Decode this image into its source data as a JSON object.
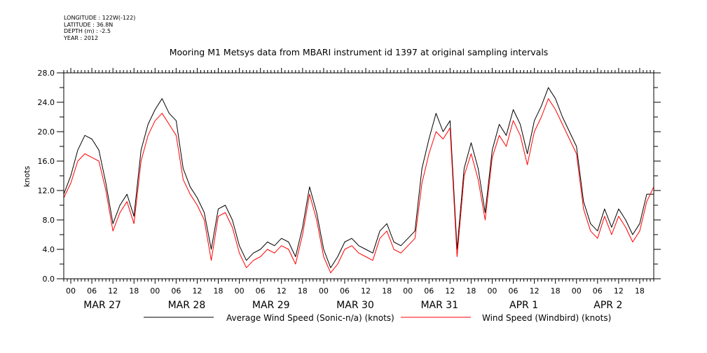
{
  "header": {
    "lines": [
      "LONGITUDE : 122W(-122)",
      "LATITUDE : 36.8N",
      "DEPTH (m) : -2.5",
      "YEAR : 2012"
    ]
  },
  "chart_data": {
    "type": "line",
    "title": "Mooring M1 Metsys data from MBARI instrument id 1397 at original sampling intervals",
    "xlabel": "",
    "ylabel": "knots",
    "ylim": [
      0,
      28
    ],
    "yticks": [
      "0.0",
      "4.0",
      "8.0",
      "12.0",
      "16.0",
      "20.0",
      "24.0",
      "28.0"
    ],
    "hour_labels": [
      "00",
      "06",
      "12",
      "18"
    ],
    "date_labels": [
      "MAR 27",
      "MAR 28",
      "MAR 29",
      "MAR 30",
      "MAR 31",
      "APR  1",
      "APR  2"
    ],
    "x_unit": "hours since 2012-03-27 00:00",
    "xlim": [
      -2,
      166
    ],
    "grid": false,
    "legend_position": "bottom",
    "series": [
      {
        "name": "Average Wind Speed (Sonic-n/a) (knots)",
        "color": "#000000",
        "x": [
          -2,
          0,
          2,
          4,
          6,
          8,
          10,
          12,
          14,
          16,
          18,
          20,
          22,
          24,
          26,
          28,
          30,
          32,
          34,
          36,
          38,
          40,
          42,
          44,
          46,
          48,
          50,
          52,
          54,
          56,
          58,
          60,
          62,
          64,
          66,
          68,
          70,
          72,
          74,
          76,
          78,
          80,
          82,
          84,
          86,
          88,
          90,
          92,
          94,
          96,
          98,
          100,
          102,
          104,
          106,
          108,
          110,
          112,
          114,
          116,
          118,
          120,
          122,
          124,
          126,
          128,
          130,
          132,
          134,
          136,
          138,
          140,
          142,
          144,
          146,
          148,
          150,
          152,
          154,
          156,
          158,
          160,
          162,
          164,
          166
        ],
        "values": [
          11.5,
          14.0,
          17.5,
          19.5,
          19.0,
          17.5,
          13.0,
          7.5,
          10.0,
          11.5,
          8.5,
          17.5,
          21.0,
          23.0,
          24.5,
          22.5,
          21.5,
          15.0,
          12.5,
          11.0,
          9.0,
          4.0,
          9.5,
          10.0,
          8.0,
          4.5,
          2.5,
          3.5,
          4.0,
          5.0,
          4.5,
          5.5,
          5.0,
          3.0,
          7.0,
          12.5,
          9.0,
          4.0,
          1.5,
          3.0,
          5.0,
          5.5,
          4.5,
          4.0,
          3.5,
          6.5,
          7.5,
          5.0,
          4.5,
          5.5,
          6.5,
          15.0,
          19.0,
          22.5,
          20.0,
          21.5,
          4.0,
          15.0,
          18.5,
          15.0,
          9.0,
          17.5,
          21.0,
          19.5,
          23.0,
          21.0,
          17.0,
          21.5,
          23.5,
          26.0,
          24.5,
          22.0,
          20.0,
          18.0,
          10.5,
          7.5,
          6.5,
          9.5,
          7.0,
          9.5,
          8.0,
          6.0,
          7.5,
          11.5,
          11.5
        ]
      },
      {
        "name": "Wind Speed (Windbird) (knots)",
        "color": "#ff0000",
        "x": [
          -2,
          0,
          2,
          4,
          6,
          8,
          10,
          12,
          14,
          16,
          18,
          20,
          22,
          24,
          26,
          28,
          30,
          32,
          34,
          36,
          38,
          40,
          42,
          44,
          46,
          48,
          50,
          52,
          54,
          56,
          58,
          60,
          62,
          64,
          66,
          68,
          70,
          72,
          74,
          76,
          78,
          80,
          82,
          84,
          86,
          88,
          90,
          92,
          94,
          96,
          98,
          100,
          102,
          104,
          106,
          108,
          110,
          112,
          114,
          116,
          118,
          120,
          122,
          124,
          126,
          128,
          130,
          132,
          134,
          136,
          138,
          140,
          142,
          144,
          146,
          148,
          150,
          152,
          154,
          156,
          158,
          160,
          162,
          164,
          166
        ],
        "values": [
          11.0,
          13.0,
          16.0,
          17.0,
          16.5,
          16.0,
          12.0,
          6.5,
          9.0,
          10.5,
          7.5,
          16.0,
          19.5,
          21.5,
          22.5,
          21.0,
          19.5,
          13.5,
          11.5,
          10.0,
          8.0,
          2.5,
          8.5,
          9.0,
          7.0,
          3.5,
          1.5,
          2.5,
          3.0,
          4.0,
          3.5,
          4.5,
          4.0,
          2.0,
          6.0,
          11.5,
          8.0,
          3.0,
          0.8,
          2.0,
          4.0,
          4.5,
          3.5,
          3.0,
          2.5,
          5.5,
          6.5,
          4.0,
          3.5,
          4.5,
          5.5,
          13.0,
          17.0,
          20.0,
          19.0,
          20.5,
          3.0,
          14.0,
          17.0,
          13.5,
          8.0,
          16.5,
          19.5,
          18.0,
          21.5,
          19.5,
          15.5,
          20.0,
          22.0,
          24.5,
          23.0,
          21.0,
          19.0,
          17.0,
          9.5,
          6.5,
          5.5,
          8.5,
          6.0,
          8.5,
          7.0,
          5.0,
          6.5,
          10.5,
          12.5
        ]
      }
    ]
  }
}
